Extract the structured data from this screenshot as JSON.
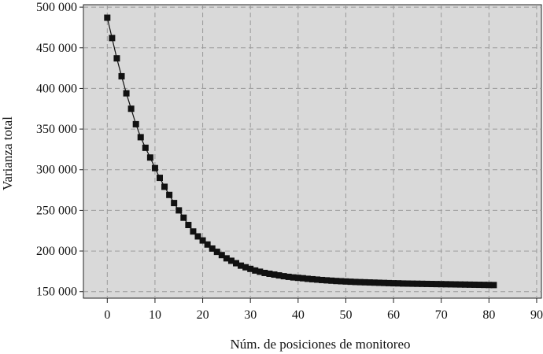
{
  "chart_data": {
    "type": "line",
    "title": "",
    "xlabel": "Núm. de posiciones de monitoreo",
    "ylabel": "Varianza total",
    "xlim": [
      -5,
      91
    ],
    "ylim": [
      142000,
      503000
    ],
    "xticks": [
      0,
      10,
      20,
      30,
      40,
      50,
      60,
      70,
      80,
      90
    ],
    "yticks": [
      150000,
      200000,
      250000,
      300000,
      350000,
      400000,
      450000,
      500000
    ],
    "xtick_labels": [
      "0",
      "10",
      "20",
      "30",
      "40",
      "50",
      "60",
      "70",
      "80",
      "90"
    ],
    "ytick_labels": [
      "150 000",
      "200 000",
      "250 000",
      "300 000",
      "350 000",
      "400 000",
      "450 000",
      "500 000"
    ],
    "grid": true,
    "legend": "none",
    "colors": {
      "plot_background": "#d9d9d9",
      "grid": "#9a9a9a",
      "series": "#111111"
    },
    "series": [
      {
        "marker": "square",
        "x": [
          0,
          1,
          2,
          3,
          4,
          5,
          6,
          7,
          8,
          9,
          10,
          11,
          12,
          13,
          14,
          15,
          16,
          17,
          18,
          19,
          20,
          21,
          22,
          23,
          24,
          25,
          26,
          27,
          28,
          29,
          30,
          31,
          32,
          33,
          34,
          35,
          36,
          37,
          38,
          39,
          40,
          41,
          42,
          43,
          44,
          45,
          46,
          47,
          48,
          49,
          50,
          51,
          52,
          53,
          54,
          55,
          56,
          57,
          58,
          59,
          60,
          61,
          62,
          63,
          64,
          65,
          66,
          67,
          68,
          69,
          70,
          71,
          72,
          73,
          74,
          75,
          76,
          77,
          78,
          79,
          80,
          81
        ],
        "values": [
          487000,
          462000,
          437000,
          415000,
          394000,
          375000,
          356000,
          340000,
          327000,
          315000,
          302000,
          290000,
          279000,
          269000,
          259000,
          250000,
          241000,
          232000,
          224000,
          218000,
          213000,
          208000,
          203000,
          199000,
          195000,
          191000,
          188000,
          185000,
          182000,
          180000,
          178000,
          176000,
          174500,
          173000,
          172000,
          171000,
          170000,
          169000,
          168200,
          167500,
          167000,
          166500,
          165800,
          165300,
          164800,
          164300,
          163900,
          163500,
          163100,
          162800,
          162500,
          162200,
          161900,
          161700,
          161500,
          161300,
          161100,
          160900,
          160700,
          160500,
          160300,
          160200,
          160000,
          159900,
          159800,
          159700,
          159600,
          159500,
          159400,
          159300,
          159200,
          159100,
          159000,
          158900,
          158800,
          158700,
          158600,
          158500,
          158400,
          158300,
          158200,
          158100
        ]
      }
    ]
  }
}
